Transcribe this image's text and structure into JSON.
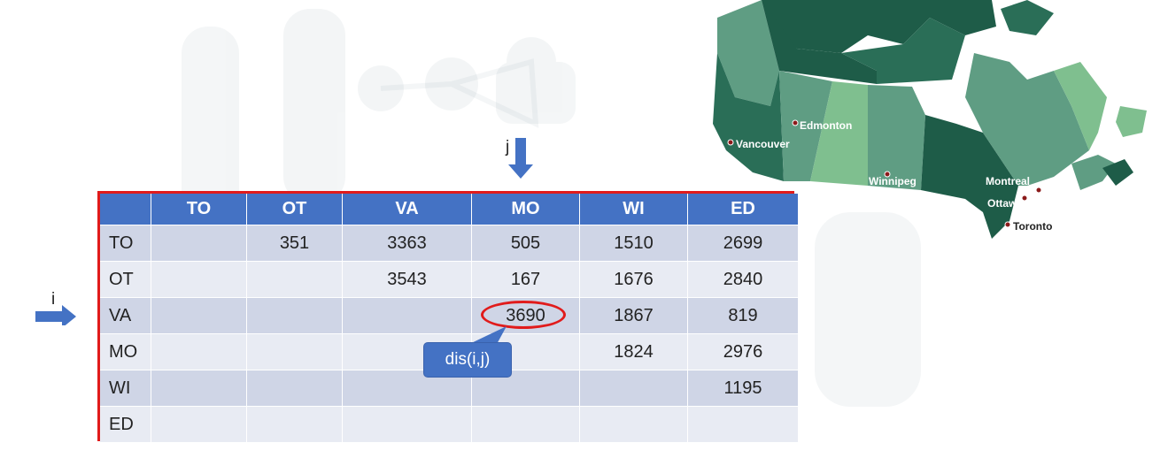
{
  "table": {
    "columns": [
      "",
      "TO",
      "OT",
      "VA",
      "MO",
      "WI",
      "ED"
    ],
    "rows": [
      {
        "label": "TO",
        "cells": [
          "",
          "351",
          "3363",
          "505",
          "1510",
          "2699"
        ]
      },
      {
        "label": "OT",
        "cells": [
          "",
          "",
          "3543",
          "167",
          "1676",
          "2840"
        ]
      },
      {
        "label": "VA",
        "cells": [
          "",
          "",
          "",
          "3690",
          "1867",
          "819"
        ]
      },
      {
        "label": "MO",
        "cells": [
          "",
          "",
          "",
          "",
          "1824",
          "2976"
        ]
      },
      {
        "label": "WI",
        "cells": [
          "",
          "",
          "",
          "",
          "",
          "1195"
        ]
      },
      {
        "label": "ED",
        "cells": [
          "",
          "",
          "",
          "",
          "",
          ""
        ]
      }
    ]
  },
  "markers": {
    "j_label": "j",
    "i_label": "i"
  },
  "callout": {
    "text": "dis(i,j)"
  },
  "map": {
    "cities": {
      "vancouver": "Vancouver",
      "edmonton": "Edmonton",
      "winnipeg": "Winnipeg",
      "montreal": "Montreal",
      "ottawa": "Ottawa",
      "toronto": "Toronto"
    }
  },
  "colors": {
    "header_blue": "#4472c4",
    "highlight_red": "#e11b1b",
    "map_dark": "#1e5c48",
    "map_mid": "#5f9d83",
    "map_light": "#7fbf8f"
  }
}
